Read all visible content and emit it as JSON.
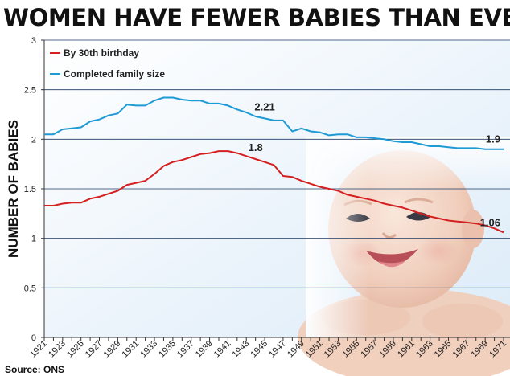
{
  "header": {
    "title": "WOMEN HAVE FEWER BABIES THAN EVER"
  },
  "footer": {
    "source": "Source: ONS"
  },
  "chart_data": {
    "type": "line",
    "title": "WOMEN HAVE FEWER BABIES THAN EVER",
    "xlabel": "",
    "ylabel": "NUMBER OF BABIES",
    "ylim": [
      0,
      3
    ],
    "yticks": [
      "0",
      "0.5",
      "1",
      "1.5",
      "2",
      "2.5",
      "3"
    ],
    "x": [
      1921,
      1922,
      1923,
      1924,
      1925,
      1926,
      1927,
      1928,
      1929,
      1930,
      1931,
      1932,
      1933,
      1934,
      1935,
      1936,
      1937,
      1938,
      1939,
      1940,
      1941,
      1942,
      1943,
      1944,
      1945,
      1946,
      1947,
      1948,
      1949,
      1950,
      1951,
      1952,
      1953,
      1954,
      1955,
      1956,
      1957,
      1958,
      1959,
      1960,
      1961,
      1962,
      1963,
      1964,
      1965,
      1966,
      1967,
      1968,
      1969,
      1970,
      1971
    ],
    "xticks": [
      "1921",
      "1923",
      "1925",
      "1927",
      "1929",
      "1931",
      "1933",
      "1935",
      "1937",
      "1939",
      "1941",
      "1943",
      "1945",
      "1947",
      "1949",
      "1951",
      "1953",
      "1955",
      "1957",
      "1959",
      "1961",
      "1963",
      "1965",
      "1967",
      "1969",
      "1971"
    ],
    "grid": true,
    "legend": "top-left",
    "series": [
      {
        "name": "By 30th birthday",
        "color": "#d42020",
        "values": [
          1.33,
          1.33,
          1.35,
          1.36,
          1.36,
          1.4,
          1.42,
          1.45,
          1.48,
          1.54,
          1.56,
          1.58,
          1.65,
          1.73,
          1.77,
          1.79,
          1.82,
          1.85,
          1.86,
          1.88,
          1.88,
          1.86,
          1.83,
          1.8,
          1.77,
          1.74,
          1.63,
          1.62,
          1.58,
          1.55,
          1.52,
          1.5,
          1.48,
          1.44,
          1.42,
          1.4,
          1.38,
          1.35,
          1.33,
          1.31,
          1.28,
          1.25,
          1.22,
          1.2,
          1.18,
          1.17,
          1.16,
          1.15,
          1.13,
          1.1,
          1.06
        ]
      },
      {
        "name": "Completed family size",
        "color": "#1e9ad4",
        "values": [
          2.05,
          2.05,
          2.1,
          2.11,
          2.12,
          2.18,
          2.2,
          2.24,
          2.26,
          2.35,
          2.34,
          2.34,
          2.39,
          2.42,
          2.42,
          2.4,
          2.39,
          2.39,
          2.36,
          2.36,
          2.34,
          2.3,
          2.27,
          2.23,
          2.21,
          2.19,
          2.19,
          2.08,
          2.11,
          2.08,
          2.07,
          2.04,
          2.05,
          2.05,
          2.02,
          2.02,
          2.01,
          2.0,
          1.98,
          1.97,
          1.97,
          1.95,
          1.93,
          1.93,
          1.92,
          1.91,
          1.91,
          1.91,
          1.9,
          1.9,
          1.9
        ]
      }
    ],
    "annotations": [
      {
        "text": "2.21",
        "x": 1945,
        "series": "Completed family size",
        "y": 2.21
      },
      {
        "text": "1.9",
        "x": 1971,
        "series": "Completed family size",
        "y": 1.9
      },
      {
        "text": "1.8",
        "x": 1944,
        "series": "By 30th birthday",
        "y": 1.8
      },
      {
        "text": "1.06",
        "x": 1971,
        "series": "By 30th birthday",
        "y": 1.06
      }
    ]
  }
}
